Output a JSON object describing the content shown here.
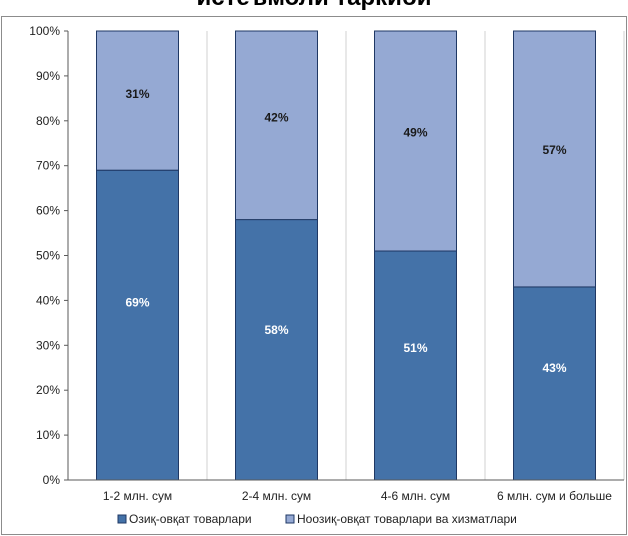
{
  "title": "истеъмоли таркиби",
  "colors": {
    "food": "#4472a8",
    "nonfood": "#95a9d3",
    "grid": "#d0d0d0",
    "bar_border": "#1f3864"
  },
  "chart_data": {
    "type": "bar",
    "stacked": true,
    "categories": [
      "1-2 млн. сум",
      "2-4 млн. сум",
      "4-6 млн. сум",
      "6 млн. сум и больше"
    ],
    "series": [
      {
        "name": "Озиқ-овқат товарлари",
        "values": [
          69,
          58,
          51,
          43
        ],
        "labels": [
          "69%",
          "58%",
          "51%",
          "43%"
        ],
        "color": "#4472a8"
      },
      {
        "name": "Ноозиқ-овқат товарлари ва хизматлари",
        "values": [
          31,
          42,
          49,
          57
        ],
        "labels": [
          "31%",
          "42%",
          "49%",
          "57%"
        ],
        "color": "#95a9d3"
      }
    ],
    "ylim": [
      0,
      100
    ],
    "ytick_labels": [
      "0%",
      "10%",
      "20%",
      "30%",
      "40%",
      "50%",
      "60%",
      "70%",
      "80%",
      "90%",
      "100%"
    ],
    "grid": "vertical",
    "legend": "bottom"
  }
}
